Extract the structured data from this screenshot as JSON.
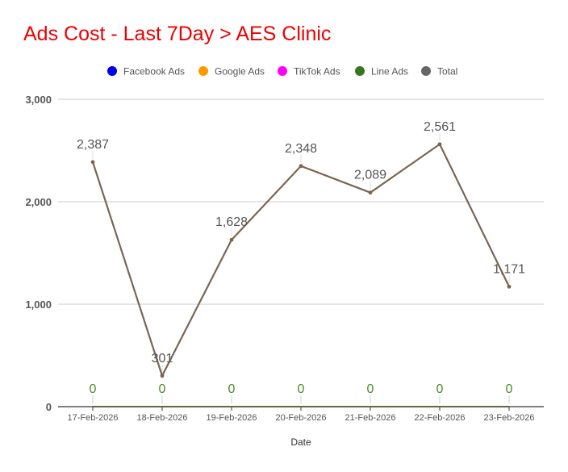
{
  "chart_data": {
    "type": "line",
    "title": "Ads Cost - Last 7Day > AES Clinic",
    "xlabel": "Date",
    "ylabel": "",
    "ylim": [
      0,
      3000
    ],
    "yticks": [
      0,
      1000,
      2000,
      3000
    ],
    "ytick_labels": [
      "0",
      "1,000",
      "2,000",
      "3,000"
    ],
    "grid": true,
    "legend_position": "top",
    "categories": [
      "17-Feb-2026",
      "18-Feb-2026",
      "19-Feb-2026",
      "20-Feb-2026",
      "21-Feb-2026",
      "22-Feb-2026",
      "23-Feb-2026"
    ],
    "series": [
      {
        "name": "Facebook Ads",
        "color": "#0000ee",
        "values": [
          0,
          0,
          0,
          0,
          0,
          0,
          0
        ],
        "labels": [
          "",
          "",
          "",
          "",
          "",
          "",
          ""
        ]
      },
      {
        "name": "Google Ads",
        "color": "#ff9900",
        "values": [
          0,
          0,
          0,
          0,
          0,
          0,
          0
        ],
        "labels": [
          "",
          "",
          "",
          "",
          "",
          "",
          ""
        ]
      },
      {
        "name": "TikTok Ads",
        "color": "#ff00ff",
        "values": [
          0,
          0,
          0,
          0,
          0,
          0,
          0
        ],
        "labels": [
          "",
          "",
          "",
          "",
          "",
          "",
          ""
        ]
      },
      {
        "name": "Line Ads",
        "color": "#38761d",
        "values": [
          0,
          0,
          0,
          0,
          0,
          0,
          0
        ],
        "labels": [
          "0",
          "0",
          "0",
          "0",
          "0",
          "0",
          "0"
        ]
      },
      {
        "name": "Total",
        "color": "#666666",
        "line_color": "#7a6650",
        "values": [
          2387,
          301,
          1628,
          2348,
          2089,
          2561,
          1171
        ],
        "labels": [
          "2,387",
          "301",
          "1,628",
          "2,348",
          "2,089",
          "2,561",
          "1,171"
        ]
      }
    ]
  }
}
